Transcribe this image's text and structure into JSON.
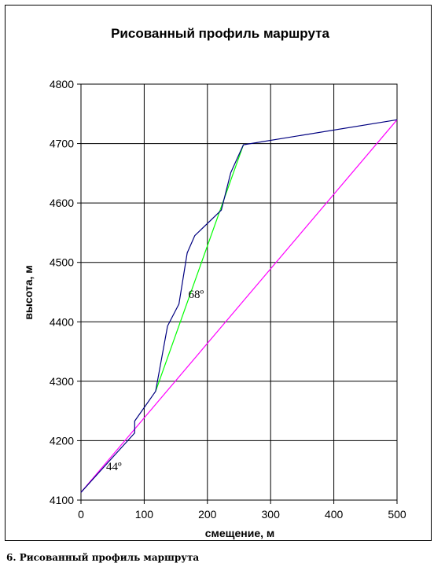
{
  "chart_data": {
    "type": "line",
    "title": "Рисованный профиль маршрута",
    "xlabel": "смещение, м",
    "ylabel": "высота, м",
    "xlim": [
      0,
      500
    ],
    "ylim": [
      4100,
      4800
    ],
    "x_ticks": [
      0,
      100,
      200,
      300,
      400,
      500
    ],
    "y_ticks": [
      4100,
      4200,
      4300,
      4400,
      4500,
      4600,
      4700,
      4800
    ],
    "grid": true,
    "legend": "none",
    "series": [
      {
        "color": "#000080",
        "x": [
          0,
          85,
          85,
          118,
          137,
          155,
          168,
          180,
          222,
          237,
          257,
          500
        ],
        "y": [
          4113,
          4213,
          4233,
          4283,
          4393,
          4430,
          4516,
          4545,
          4588,
          4651,
          4698,
          4740
        ]
      },
      {
        "color": "#00ff00",
        "x": [
          118,
          257
        ],
        "y": [
          4283,
          4698
        ]
      },
      {
        "color": "#ff00ff",
        "x": [
          0,
          500
        ],
        "y": [
          4113,
          4740
        ]
      }
    ],
    "annotations": [
      {
        "text": "68º",
        "x": 182,
        "y": 4440
      },
      {
        "text": "44º",
        "x": 52,
        "y": 4150
      }
    ]
  },
  "caption": "6. Рисованный профиль маршрута"
}
